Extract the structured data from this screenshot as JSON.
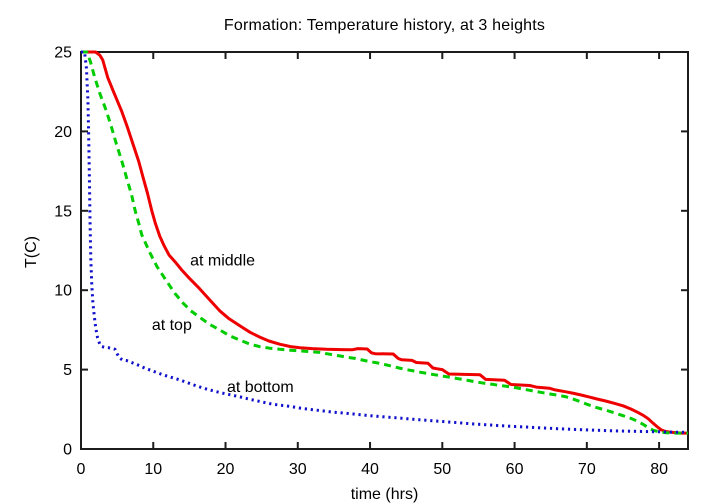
{
  "chart_data": {
    "type": "line",
    "title": "Formation: Temperature history, at 3 heights",
    "xlabel": "time (hrs)",
    "ylabel": "T(C)",
    "xlim": [
      0,
      84
    ],
    "ylim": [
      0,
      25
    ],
    "xticks": [
      0,
      10,
      20,
      30,
      40,
      50,
      60,
      70,
      80
    ],
    "yticks": [
      0,
      5,
      10,
      15,
      20,
      25
    ],
    "grid": false,
    "legend_position": "inline-curve-labels",
    "axis_color": "#1c1c1c",
    "text_color": "#000000",
    "series": [
      {
        "name": "at middle",
        "color": "#ee0000",
        "style": "solid",
        "width": 3,
        "points": [
          [
            0,
            25
          ],
          [
            2,
            25
          ],
          [
            2.6,
            24.8
          ],
          [
            3,
            24.5
          ],
          [
            3.7,
            23.4
          ],
          [
            4.5,
            22.5
          ],
          [
            5.6,
            21.3
          ],
          [
            6.4,
            20.3
          ],
          [
            7.2,
            19.2
          ],
          [
            8,
            18.1
          ],
          [
            8.6,
            17.1
          ],
          [
            9.2,
            16.1
          ],
          [
            9.8,
            15.0
          ],
          [
            10.3,
            14.2
          ],
          [
            10.9,
            13.4
          ],
          [
            11.5,
            12.8
          ],
          [
            12.2,
            12.2
          ],
          [
            13,
            11.8
          ],
          [
            13.9,
            11.3
          ],
          [
            15,
            10.75
          ],
          [
            16.4,
            10.1
          ],
          [
            17.8,
            9.4
          ],
          [
            19.2,
            8.7
          ],
          [
            20.5,
            8.2
          ],
          [
            22,
            7.75
          ],
          [
            23.4,
            7.35
          ],
          [
            24.7,
            7.05
          ],
          [
            26,
            6.8
          ],
          [
            27.5,
            6.6
          ],
          [
            29,
            6.45
          ],
          [
            30.3,
            6.38
          ],
          [
            32,
            6.32
          ],
          [
            34,
            6.28
          ],
          [
            36,
            6.26
          ],
          [
            37.5,
            6.25
          ],
          [
            38.3,
            6.32
          ],
          [
            39.6,
            6.3
          ],
          [
            40.2,
            6.05
          ],
          [
            40.7,
            6.0
          ],
          [
            43.2,
            5.98
          ],
          [
            43.9,
            5.7
          ],
          [
            44.4,
            5.62
          ],
          [
            45.8,
            5.58
          ],
          [
            46.4,
            5.45
          ],
          [
            48,
            5.4
          ],
          [
            48.7,
            5.1
          ],
          [
            49.3,
            5.05
          ],
          [
            50,
            5.0
          ],
          [
            50.9,
            4.72
          ],
          [
            55.2,
            4.68
          ],
          [
            56,
            4.38
          ],
          [
            58.6,
            4.33
          ],
          [
            59.5,
            4.06
          ],
          [
            62.1,
            4.0
          ],
          [
            63,
            3.9
          ],
          [
            64.8,
            3.83
          ],
          [
            65.6,
            3.72
          ],
          [
            67.1,
            3.6
          ],
          [
            68.2,
            3.5
          ],
          [
            69.2,
            3.4
          ],
          [
            70.3,
            3.28
          ],
          [
            71.4,
            3.15
          ],
          [
            72.6,
            3.02
          ],
          [
            73.8,
            2.88
          ],
          [
            75,
            2.72
          ],
          [
            76.1,
            2.52
          ],
          [
            77,
            2.32
          ],
          [
            77.8,
            2.12
          ],
          [
            78.5,
            1.9
          ],
          [
            79.1,
            1.65
          ],
          [
            79.7,
            1.42
          ],
          [
            80.3,
            1.2
          ],
          [
            80.9,
            1.1
          ],
          [
            81.7,
            1.05
          ],
          [
            83,
            1.0
          ],
          [
            84,
            1.0
          ]
        ]
      },
      {
        "name": "at top",
        "color": "#00cc00",
        "style": "dashed",
        "width": 3,
        "points": [
          [
            0,
            25
          ],
          [
            0.8,
            25
          ],
          [
            1.3,
            24.4
          ],
          [
            1.9,
            23.4
          ],
          [
            2.6,
            22.4
          ],
          [
            3.5,
            21.3
          ],
          [
            4.2,
            20.3
          ],
          [
            4.9,
            19.2
          ],
          [
            5.6,
            18.2
          ],
          [
            6.3,
            17.1
          ],
          [
            7,
            16.0
          ],
          [
            7.5,
            15.0
          ],
          [
            8,
            14.2
          ],
          [
            8.4,
            13.5
          ],
          [
            9,
            12.9
          ],
          [
            9.5,
            12.4
          ],
          [
            10.5,
            11.5
          ],
          [
            11.8,
            10.6
          ],
          [
            13,
            9.8
          ],
          [
            14.1,
            9.2
          ],
          [
            15.2,
            8.7
          ],
          [
            16.4,
            8.3
          ],
          [
            17.8,
            7.85
          ],
          [
            19.2,
            7.5
          ],
          [
            20.5,
            7.15
          ],
          [
            22,
            6.85
          ],
          [
            23.4,
            6.6
          ],
          [
            24.7,
            6.45
          ],
          [
            26.1,
            6.35
          ],
          [
            27.5,
            6.28
          ],
          [
            29,
            6.22
          ],
          [
            30.3,
            6.18
          ],
          [
            32,
            6.12
          ],
          [
            33,
            6.08
          ],
          [
            34,
            6.0
          ],
          [
            35,
            5.92
          ],
          [
            36,
            5.85
          ],
          [
            37,
            5.77
          ],
          [
            38,
            5.7
          ],
          [
            39,
            5.6
          ],
          [
            40,
            5.5
          ],
          [
            41,
            5.42
          ],
          [
            42,
            5.32
          ],
          [
            43,
            5.22
          ],
          [
            44,
            5.1
          ],
          [
            45,
            5.0
          ],
          [
            46,
            4.92
          ],
          [
            47,
            4.83
          ],
          [
            48,
            4.75
          ],
          [
            49,
            4.67
          ],
          [
            50,
            4.6
          ],
          [
            51,
            4.52
          ],
          [
            52,
            4.44
          ],
          [
            53,
            4.37
          ],
          [
            54,
            4.28
          ],
          [
            55,
            4.2
          ],
          [
            56,
            4.13
          ],
          [
            57,
            4.07
          ],
          [
            58,
            4.0
          ],
          [
            59,
            3.94
          ],
          [
            60,
            3.87
          ],
          [
            61,
            3.79
          ],
          [
            62,
            3.7
          ],
          [
            63,
            3.62
          ],
          [
            64,
            3.54
          ],
          [
            65,
            3.46
          ],
          [
            66,
            3.38
          ],
          [
            67,
            3.3
          ],
          [
            68,
            3.16
          ],
          [
            69,
            3.0
          ],
          [
            70,
            2.82
          ],
          [
            71.4,
            2.6
          ],
          [
            72.6,
            2.45
          ],
          [
            73.8,
            2.28
          ],
          [
            75,
            2.1
          ],
          [
            76.1,
            1.93
          ],
          [
            77,
            1.75
          ],
          [
            77.8,
            1.55
          ],
          [
            78.5,
            1.35
          ],
          [
            79.2,
            1.18
          ],
          [
            80,
            1.08
          ],
          [
            81,
            1.02
          ],
          [
            82,
            1.0
          ],
          [
            84,
            1.0
          ]
        ]
      },
      {
        "name": "at bottom",
        "color": "#1111cc",
        "style": "dotted",
        "width": 3,
        "points": [
          [
            0,
            25
          ],
          [
            0.5,
            25
          ],
          [
            0.75,
            24
          ],
          [
            0.95,
            22
          ],
          [
            1.05,
            20
          ],
          [
            1.15,
            17.5
          ],
          [
            1.25,
            14.5
          ],
          [
            1.35,
            12
          ],
          [
            1.5,
            10.3
          ],
          [
            1.65,
            9.2
          ],
          [
            1.85,
            8.3
          ],
          [
            2.05,
            7.6
          ],
          [
            2.3,
            7.0
          ],
          [
            2.6,
            6.6
          ],
          [
            2.9,
            6.45
          ],
          [
            3.3,
            6.4
          ],
          [
            3.8,
            6.38
          ],
          [
            4.3,
            6.33
          ],
          [
            4.7,
            6.28
          ],
          [
            5,
            6.0
          ],
          [
            5.3,
            5.75
          ],
          [
            5.7,
            5.62
          ],
          [
            6.3,
            5.57
          ],
          [
            7,
            5.45
          ],
          [
            7.8,
            5.3
          ],
          [
            8.8,
            5.1
          ],
          [
            10,
            4.9
          ],
          [
            11,
            4.73
          ],
          [
            12,
            4.58
          ],
          [
            13.3,
            4.4
          ],
          [
            14.5,
            4.22
          ],
          [
            15.5,
            4.05
          ],
          [
            16.5,
            3.9
          ],
          [
            17.8,
            3.72
          ],
          [
            19.2,
            3.56
          ],
          [
            20.6,
            3.42
          ],
          [
            22,
            3.28
          ],
          [
            23.5,
            3.12
          ],
          [
            24.7,
            3.0
          ],
          [
            26.5,
            2.82
          ],
          [
            28.9,
            2.68
          ],
          [
            30.5,
            2.56
          ],
          [
            32.5,
            2.45
          ],
          [
            35,
            2.32
          ],
          [
            37.9,
            2.2
          ],
          [
            40,
            2.1
          ],
          [
            42,
            2.02
          ],
          [
            44,
            1.95
          ],
          [
            46,
            1.87
          ],
          [
            48,
            1.8
          ],
          [
            50,
            1.73
          ],
          [
            52,
            1.66
          ],
          [
            54,
            1.59
          ],
          [
            56,
            1.53
          ],
          [
            58,
            1.47
          ],
          [
            60,
            1.42
          ],
          [
            62,
            1.37
          ],
          [
            64,
            1.32
          ],
          [
            66,
            1.28
          ],
          [
            68,
            1.24
          ],
          [
            70,
            1.2
          ],
          [
            72,
            1.17
          ],
          [
            74,
            1.14
          ],
          [
            76,
            1.12
          ],
          [
            78,
            1.1
          ],
          [
            80,
            1.08
          ],
          [
            82,
            1.06
          ],
          [
            84,
            1.05
          ]
        ]
      }
    ],
    "annotations": [
      {
        "text": "at middle",
        "t": 15.1,
        "T": 11.9
      },
      {
        "text": "at top",
        "t": 9.8,
        "T": 7.85
      },
      {
        "text": "at bottom",
        "t": 20.2,
        "T": 3.95
      }
    ]
  }
}
